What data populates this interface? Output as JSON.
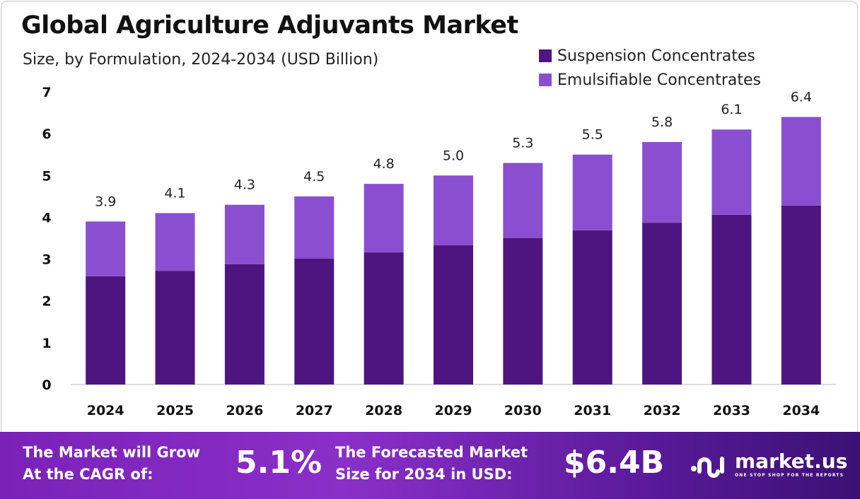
{
  "chart_data": {
    "type": "bar",
    "stacked": true,
    "title": "Global Agriculture Adjuvants Market",
    "subtitle": "Size, by Formulation, 2024-2034 (USD Billion)",
    "categories": [
      "2024",
      "2025",
      "2026",
      "2027",
      "2028",
      "2029",
      "2030",
      "2031",
      "2032",
      "2033",
      "2034"
    ],
    "series": [
      {
        "name": "Suspension Concentrates",
        "color": "#4e1580",
        "values": [
          2.59,
          2.72,
          2.88,
          3.01,
          3.16,
          3.33,
          3.5,
          3.69,
          3.87,
          4.06,
          4.28
        ]
      },
      {
        "name": "Emulsifiable Concentrates",
        "color": "#8a4fd0",
        "values": [
          1.31,
          1.38,
          1.42,
          1.49,
          1.64,
          1.67,
          1.8,
          1.81,
          1.93,
          2.04,
          2.12
        ]
      }
    ],
    "totals": [
      "3.9",
      "4.1",
      "4.3",
      "4.5",
      "4.8",
      "5.0",
      "5.3",
      "5.5",
      "5.8",
      "6.1",
      "6.4"
    ],
    "yticks": [
      "0",
      "1",
      "2",
      "3",
      "4",
      "5",
      "6",
      "7"
    ],
    "ylim": [
      0,
      7
    ],
    "xlabel": "",
    "ylabel": "",
    "legend_position": "top-right",
    "grid": false
  },
  "footer": {
    "cagr_label": [
      "The Market will Grow",
      "At the CAGR of:"
    ],
    "cagr_value": "5.1%",
    "forecast_label": [
      "The Forecasted Market",
      "Size for 2034 in USD:"
    ],
    "forecast_value": "$6.4B",
    "brand": "market.us",
    "tagline": "ONE STOP SHOP FOR THE REPORTS"
  }
}
